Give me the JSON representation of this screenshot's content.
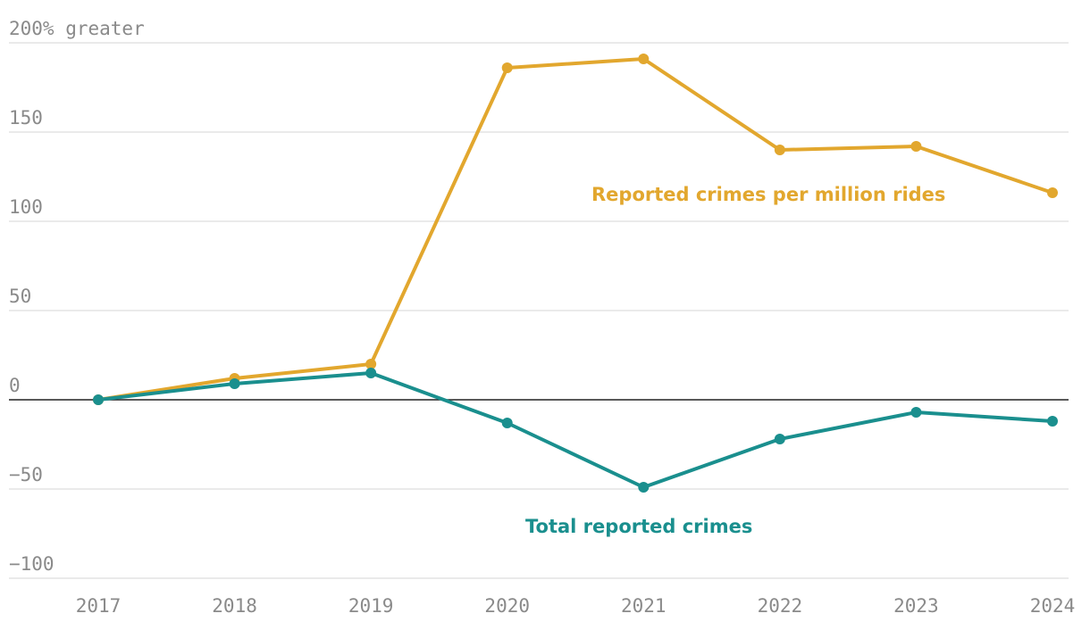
{
  "chart_data": {
    "type": "line",
    "x": [
      "2017",
      "2018",
      "2019",
      "2020",
      "2021",
      "2022",
      "2023",
      "2024"
    ],
    "series": [
      {
        "name": "Reported crimes per million rides",
        "color": "#e2a72e",
        "values": [
          0,
          12,
          20,
          186,
          191,
          140,
          142,
          116
        ]
      },
      {
        "name": "Total reported crimes",
        "color": "#1a8f8e",
        "values": [
          0,
          9,
          15,
          -13,
          -49,
          -22,
          -7,
          -12
        ]
      }
    ],
    "ylim": [
      -100,
      200
    ],
    "y_ticks": [
      {
        "value": 200,
        "label": "200% greater"
      },
      {
        "value": 150,
        "label": "150"
      },
      {
        "value": 100,
        "label": "100"
      },
      {
        "value": 50,
        "label": "50"
      },
      {
        "value": 0,
        "label": "0"
      },
      {
        "value": -50,
        "label": "−50"
      },
      {
        "value": -100,
        "label": "−100"
      }
    ],
    "grid": true,
    "legend": "inline labels near lines"
  }
}
